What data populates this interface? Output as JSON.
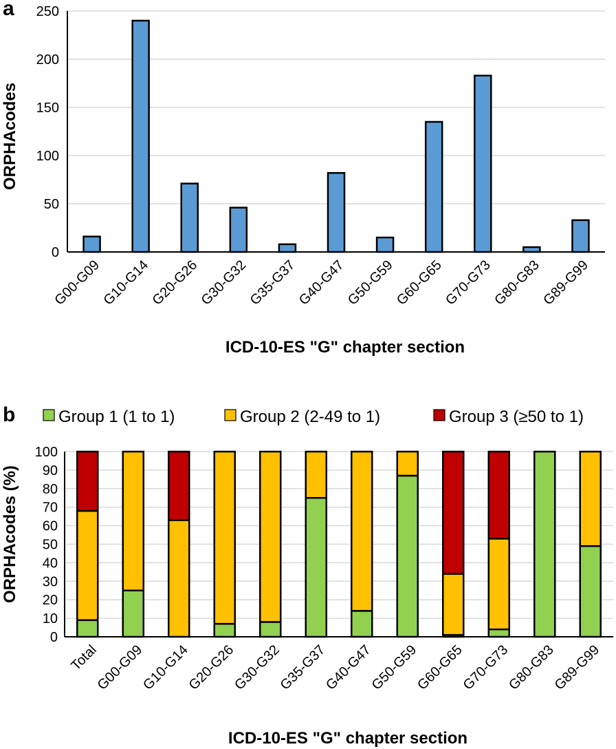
{
  "chart_data": [
    {
      "panel_label": "a",
      "type": "bar",
      "title": "",
      "xlabel": "ICD-10-ES \"G\" chapter section",
      "ylabel": "ORPHAcodes",
      "ylim": [
        0,
        250
      ],
      "yticks": [
        0,
        50,
        100,
        150,
        200,
        250
      ],
      "grid": true,
      "bar_color": "#5b9bd5",
      "categories": [
        "G00-G09",
        "G10-G14",
        "G20-G26",
        "G30-G32",
        "G35-G37",
        "G40-G47",
        "G50-G59",
        "G60-G65",
        "G70-G73",
        "G80-G83",
        "G89-G99"
      ],
      "values": [
        16,
        240,
        71,
        46,
        8,
        82,
        15,
        135,
        183,
        5,
        33
      ]
    },
    {
      "panel_label": "b",
      "type": "bar",
      "stacked": true,
      "title": "",
      "xlabel": "ICD-10-ES \"G\" chapter section",
      "ylabel": "ORPHAcodes (%)",
      "ylim": [
        0,
        100
      ],
      "yticks": [
        0,
        10,
        20,
        30,
        40,
        50,
        60,
        70,
        80,
        90,
        100
      ],
      "grid": true,
      "legend_position": "top",
      "categories": [
        "Total",
        "G00-G09",
        "G10-G14",
        "G20-G26",
        "G30-G32",
        "G35-G37",
        "G40-G47",
        "G50-G59",
        "G60-G65",
        "G70-G73",
        "G80-G83",
        "G89-G99"
      ],
      "series": [
        {
          "name": "Group 1 (1 to 1)",
          "color": "#92d050",
          "values": [
            9,
            25,
            0,
            7,
            8,
            75,
            14,
            87,
            1,
            4,
            100,
            49
          ]
        },
        {
          "name": "Group 2 (2-49 to 1)",
          "color": "#ffc000",
          "values": [
            59,
            75,
            63,
            93,
            92,
            25,
            86,
            13,
            33,
            49,
            0,
            51
          ]
        },
        {
          "name": "Group 3 (≥50 to 1)",
          "color": "#c00000",
          "values": [
            32,
            0,
            37,
            0,
            0,
            0,
            0,
            0,
            66,
            47,
            0,
            0
          ]
        }
      ]
    }
  ]
}
